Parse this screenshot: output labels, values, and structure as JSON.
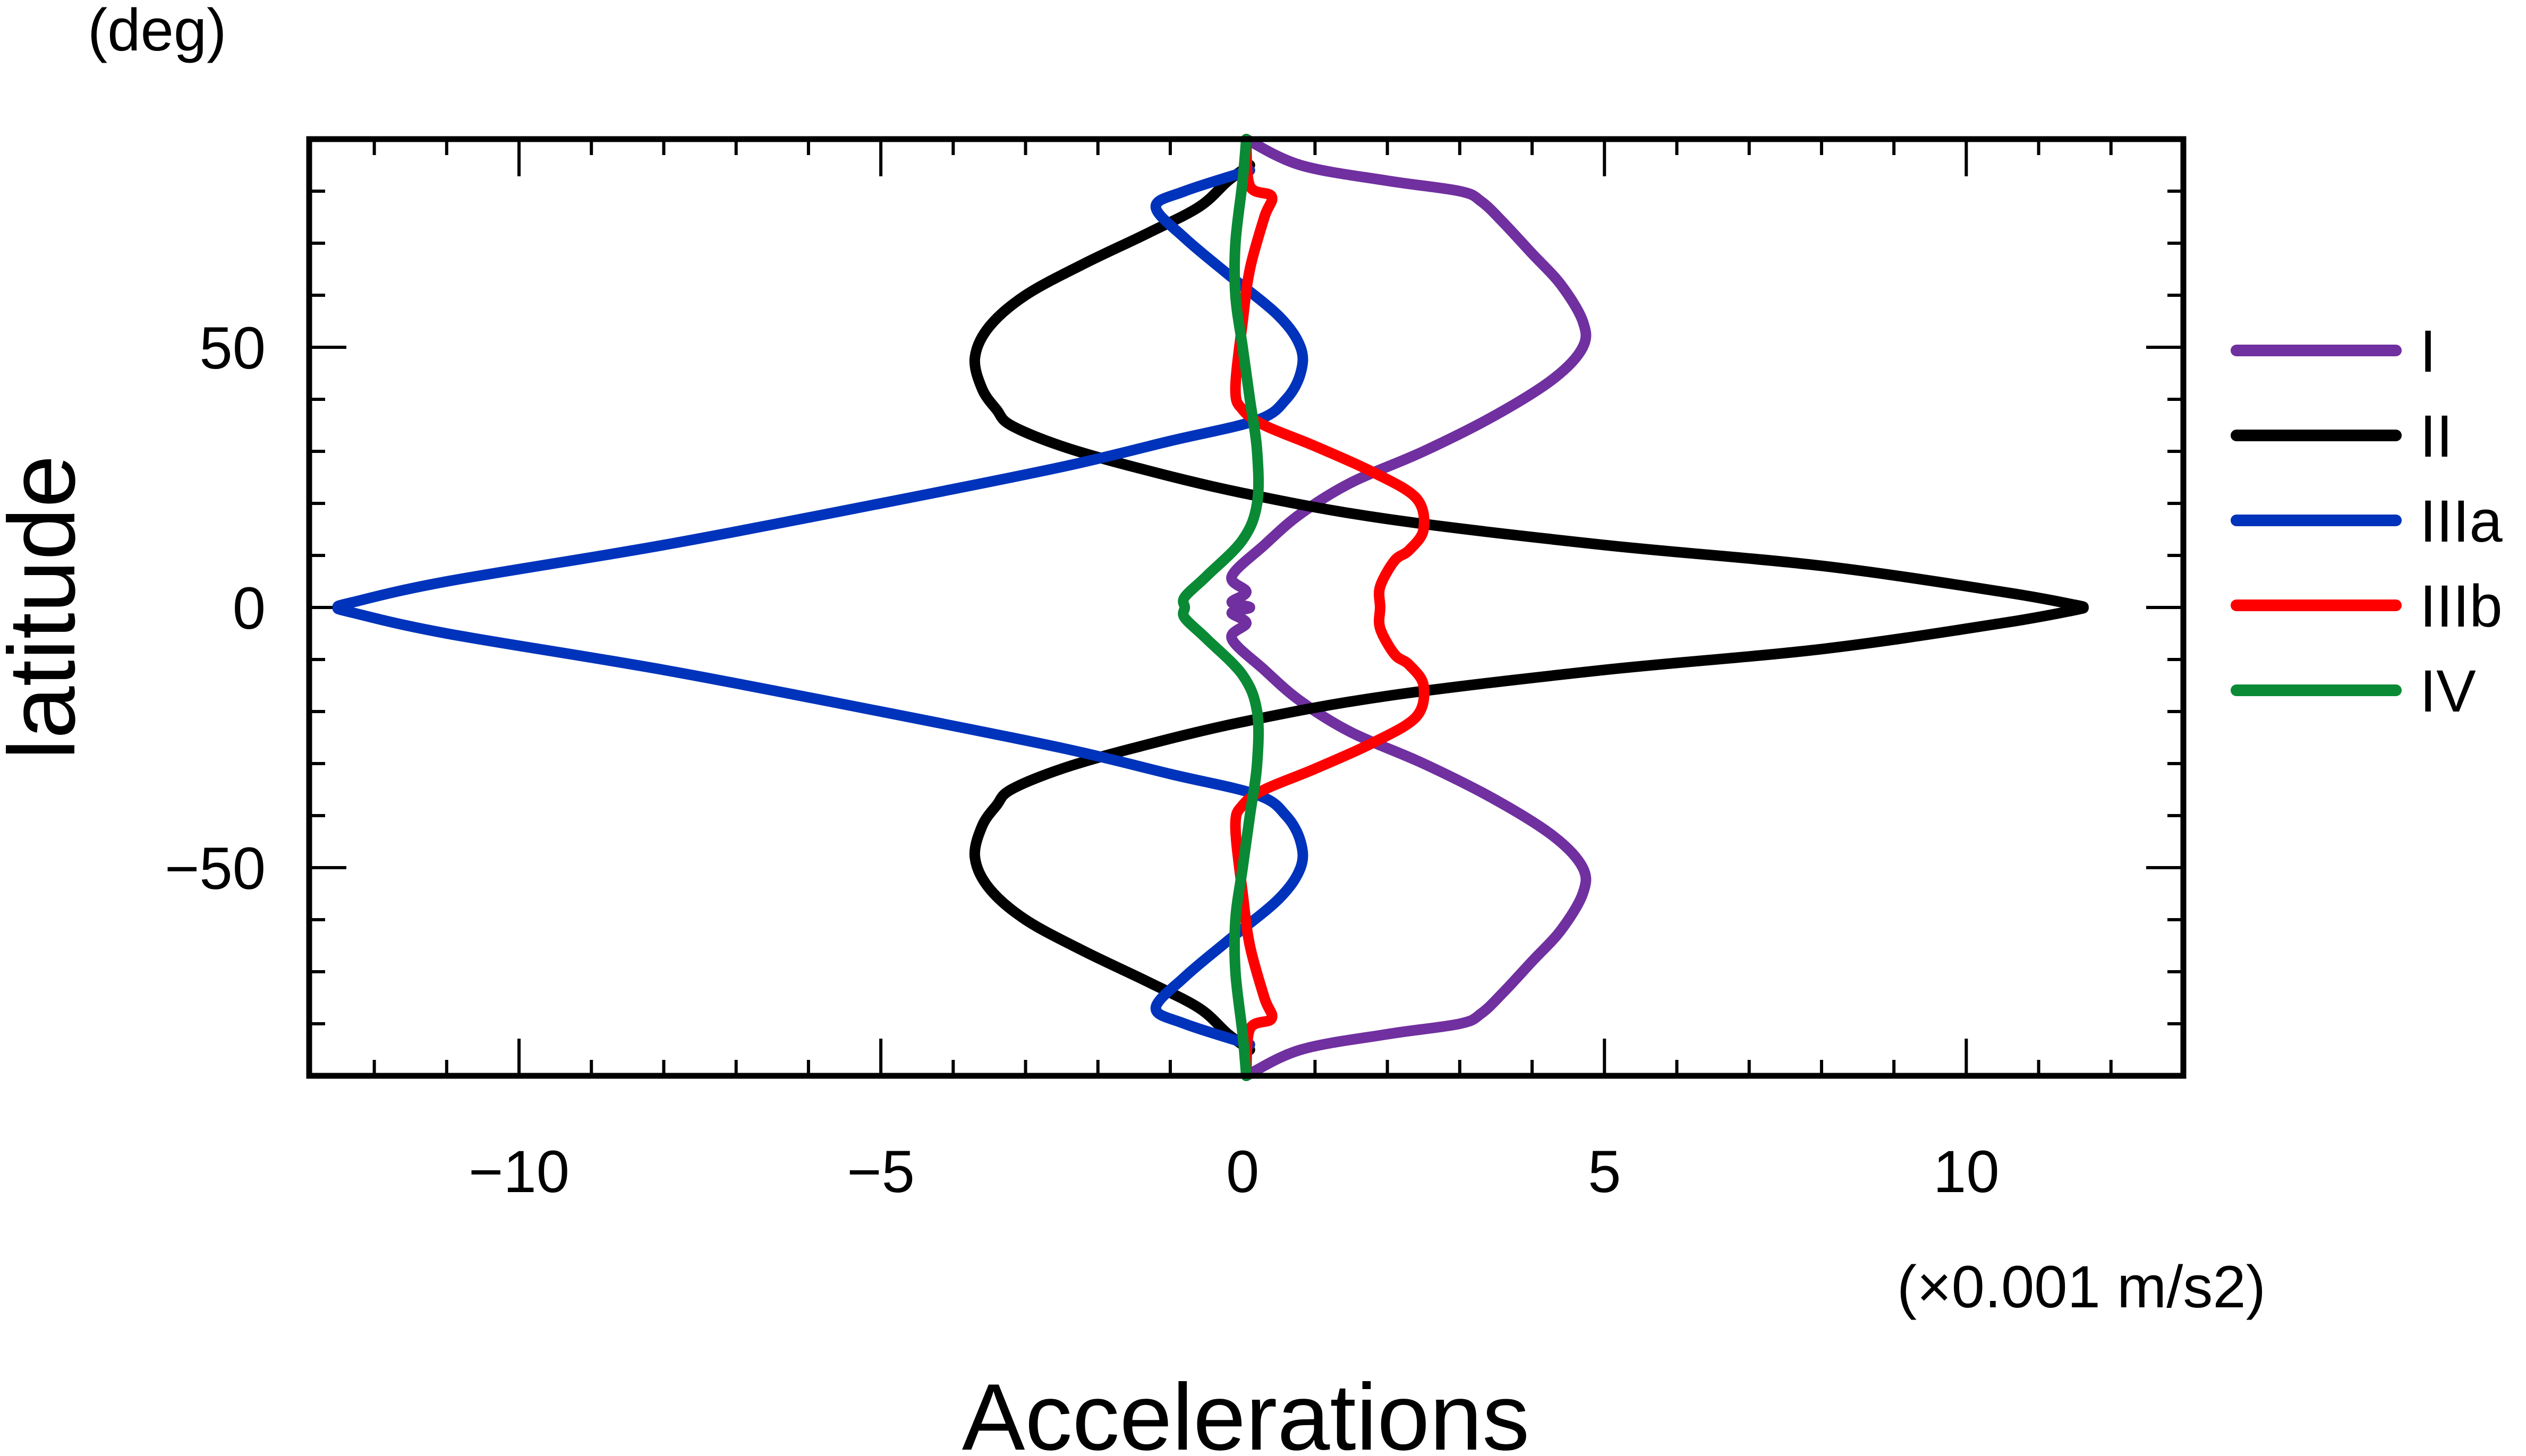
{
  "chart_data": {
    "type": "line",
    "xlabel": "Accelerations",
    "ylabel": "latitude",
    "x_unit": "(×0.001 m/s2)",
    "y_unit": "(deg)",
    "xlim": [
      -12.9,
      13.0
    ],
    "ylim": [
      -90,
      90
    ],
    "x_ticks": [
      -10,
      -5,
      0,
      5,
      10
    ],
    "x_tick_labels": [
      "−10",
      "−5",
      "0",
      "5",
      "10"
    ],
    "y_ticks": [
      -50,
      0,
      50
    ],
    "y_tick_labels": [
      "−50",
      "0",
      "50"
    ],
    "x_minor_step": 1,
    "y_minor_step": 10,
    "legend_position": "right",
    "grid": false,
    "series": [
      {
        "name": "I",
        "color": "#7030a0",
        "points": [
          [
            0.05,
            90
          ],
          [
            0.8,
            85
          ],
          [
            2.0,
            82
          ],
          [
            3.0,
            80
          ],
          [
            3.3,
            78
          ],
          [
            3.6,
            74
          ],
          [
            4.0,
            68
          ],
          [
            4.4,
            62
          ],
          [
            4.7,
            55
          ],
          [
            4.7,
            50
          ],
          [
            4.3,
            44
          ],
          [
            3.5,
            37
          ],
          [
            2.5,
            30
          ],
          [
            1.5,
            24
          ],
          [
            0.8,
            18
          ],
          [
            0.3,
            12
          ],
          [
            -0.15,
            6
          ],
          [
            0.05,
            3
          ],
          [
            -0.15,
            1
          ],
          [
            0.1,
            0
          ],
          [
            -0.15,
            -1
          ],
          [
            0.05,
            -3
          ],
          [
            -0.15,
            -6
          ],
          [
            0.3,
            -12
          ],
          [
            0.8,
            -18
          ],
          [
            1.5,
            -24
          ],
          [
            2.5,
            -30
          ],
          [
            3.5,
            -37
          ],
          [
            4.3,
            -44
          ],
          [
            4.7,
            -50
          ],
          [
            4.7,
            -55
          ],
          [
            4.4,
            -62
          ],
          [
            4.0,
            -68
          ],
          [
            3.6,
            -74
          ],
          [
            3.3,
            -78
          ],
          [
            3.0,
            -80
          ],
          [
            2.0,
            -82
          ],
          [
            0.8,
            -85
          ],
          [
            0.05,
            -90
          ]
        ]
      },
      {
        "name": "II",
        "color": "#000000",
        "points": [
          [
            0.1,
            85
          ],
          [
            -0.2,
            82
          ],
          [
            -0.6,
            77
          ],
          [
            -1.3,
            72
          ],
          [
            -2.2,
            66
          ],
          [
            -3.0,
            60
          ],
          [
            -3.5,
            54
          ],
          [
            -3.7,
            48
          ],
          [
            -3.6,
            42
          ],
          [
            -3.4,
            38
          ],
          [
            -3.2,
            35
          ],
          [
            -2.5,
            31
          ],
          [
            -1.5,
            27
          ],
          [
            0.0,
            22
          ],
          [
            2.0,
            17
          ],
          [
            5.0,
            12
          ],
          [
            8.0,
            8
          ],
          [
            10.5,
            3
          ],
          [
            11.5,
            0.5
          ],
          [
            11.6,
            0
          ],
          [
            11.5,
            -0.5
          ],
          [
            10.5,
            -3
          ],
          [
            8.0,
            -8
          ],
          [
            5.0,
            -12
          ],
          [
            2.0,
            -17
          ],
          [
            0.0,
            -22
          ],
          [
            -1.5,
            -27
          ],
          [
            -2.5,
            -31
          ],
          [
            -3.2,
            -35
          ],
          [
            -3.4,
            -38
          ],
          [
            -3.6,
            -42
          ],
          [
            -3.7,
            -48
          ],
          [
            -3.5,
            -54
          ],
          [
            -3.0,
            -60
          ],
          [
            -2.2,
            -66
          ],
          [
            -1.3,
            -72
          ],
          [
            -0.6,
            -77
          ],
          [
            -0.2,
            -82
          ],
          [
            0.1,
            -85
          ]
        ]
      },
      {
        "name": "IIIa",
        "color": "#0033bb",
        "points": [
          [
            0.1,
            84
          ],
          [
            -0.8,
            80
          ],
          [
            -1.2,
            77
          ],
          [
            -0.8,
            71
          ],
          [
            -0.2,
            64
          ],
          [
            0.5,
            56
          ],
          [
            0.8,
            50
          ],
          [
            0.8,
            45
          ],
          [
            0.6,
            40
          ],
          [
            0.2,
            36
          ],
          [
            -1.0,
            32
          ],
          [
            -2.5,
            27
          ],
          [
            -5.0,
            20
          ],
          [
            -8.0,
            12
          ],
          [
            -11.0,
            5
          ],
          [
            -12.3,
            1
          ],
          [
            -12.5,
            0
          ],
          [
            -12.3,
            -1
          ],
          [
            -11.0,
            -5
          ],
          [
            -8.0,
            -12
          ],
          [
            -5.0,
            -20
          ],
          [
            -2.5,
            -27
          ],
          [
            -1.0,
            -32
          ],
          [
            0.2,
            -36
          ],
          [
            0.6,
            -40
          ],
          [
            0.8,
            -45
          ],
          [
            0.8,
            -50
          ],
          [
            0.5,
            -56
          ],
          [
            -0.2,
            -64
          ],
          [
            -0.8,
            -71
          ],
          [
            -1.2,
            -77
          ],
          [
            -0.8,
            -80
          ],
          [
            0.1,
            -84
          ]
        ]
      },
      {
        "name": "IIIb",
        "color": "#ff0000",
        "points": [
          [
            0.05,
            90
          ],
          [
            0.1,
            81
          ],
          [
            0.4,
            79
          ],
          [
            0.3,
            75
          ],
          [
            0.1,
            65
          ],
          [
            0.0,
            55
          ],
          [
            -0.1,
            42
          ],
          [
            0.0,
            38
          ],
          [
            0.3,
            35
          ],
          [
            1.0,
            31
          ],
          [
            1.8,
            26
          ],
          [
            2.4,
            21
          ],
          [
            2.5,
            15
          ],
          [
            2.3,
            11
          ],
          [
            2.1,
            9
          ],
          [
            1.9,
            4
          ],
          [
            1.9,
            0
          ],
          [
            1.9,
            -4
          ],
          [
            2.1,
            -9
          ],
          [
            2.3,
            -11
          ],
          [
            2.5,
            -15
          ],
          [
            2.4,
            -21
          ],
          [
            1.8,
            -26
          ],
          [
            1.0,
            -31
          ],
          [
            0.3,
            -35
          ],
          [
            0.0,
            -38
          ],
          [
            -0.1,
            -42
          ],
          [
            0.0,
            -55
          ],
          [
            0.1,
            -65
          ],
          [
            0.3,
            -75
          ],
          [
            0.4,
            -79
          ],
          [
            0.1,
            -81
          ],
          [
            0.05,
            -90
          ]
        ]
      },
      {
        "name": "IV",
        "color": "#0a8a35",
        "points": [
          [
            0.05,
            90
          ],
          [
            0.0,
            82
          ],
          [
            -0.1,
            70
          ],
          [
            -0.1,
            60
          ],
          [
            0.0,
            50
          ],
          [
            0.1,
            40
          ],
          [
            0.2,
            30
          ],
          [
            0.2,
            20
          ],
          [
            0.0,
            13
          ],
          [
            -0.5,
            6
          ],
          [
            -0.8,
            2
          ],
          [
            -0.8,
            0
          ],
          [
            -0.8,
            -2
          ],
          [
            -0.5,
            -6
          ],
          [
            0.0,
            -13
          ],
          [
            0.2,
            -20
          ],
          [
            0.2,
            -30
          ],
          [
            0.1,
            -40
          ],
          [
            0.0,
            -50
          ],
          [
            -0.1,
            -60
          ],
          [
            -0.1,
            -70
          ],
          [
            0.0,
            -82
          ],
          [
            0.05,
            -90
          ]
        ]
      }
    ]
  }
}
